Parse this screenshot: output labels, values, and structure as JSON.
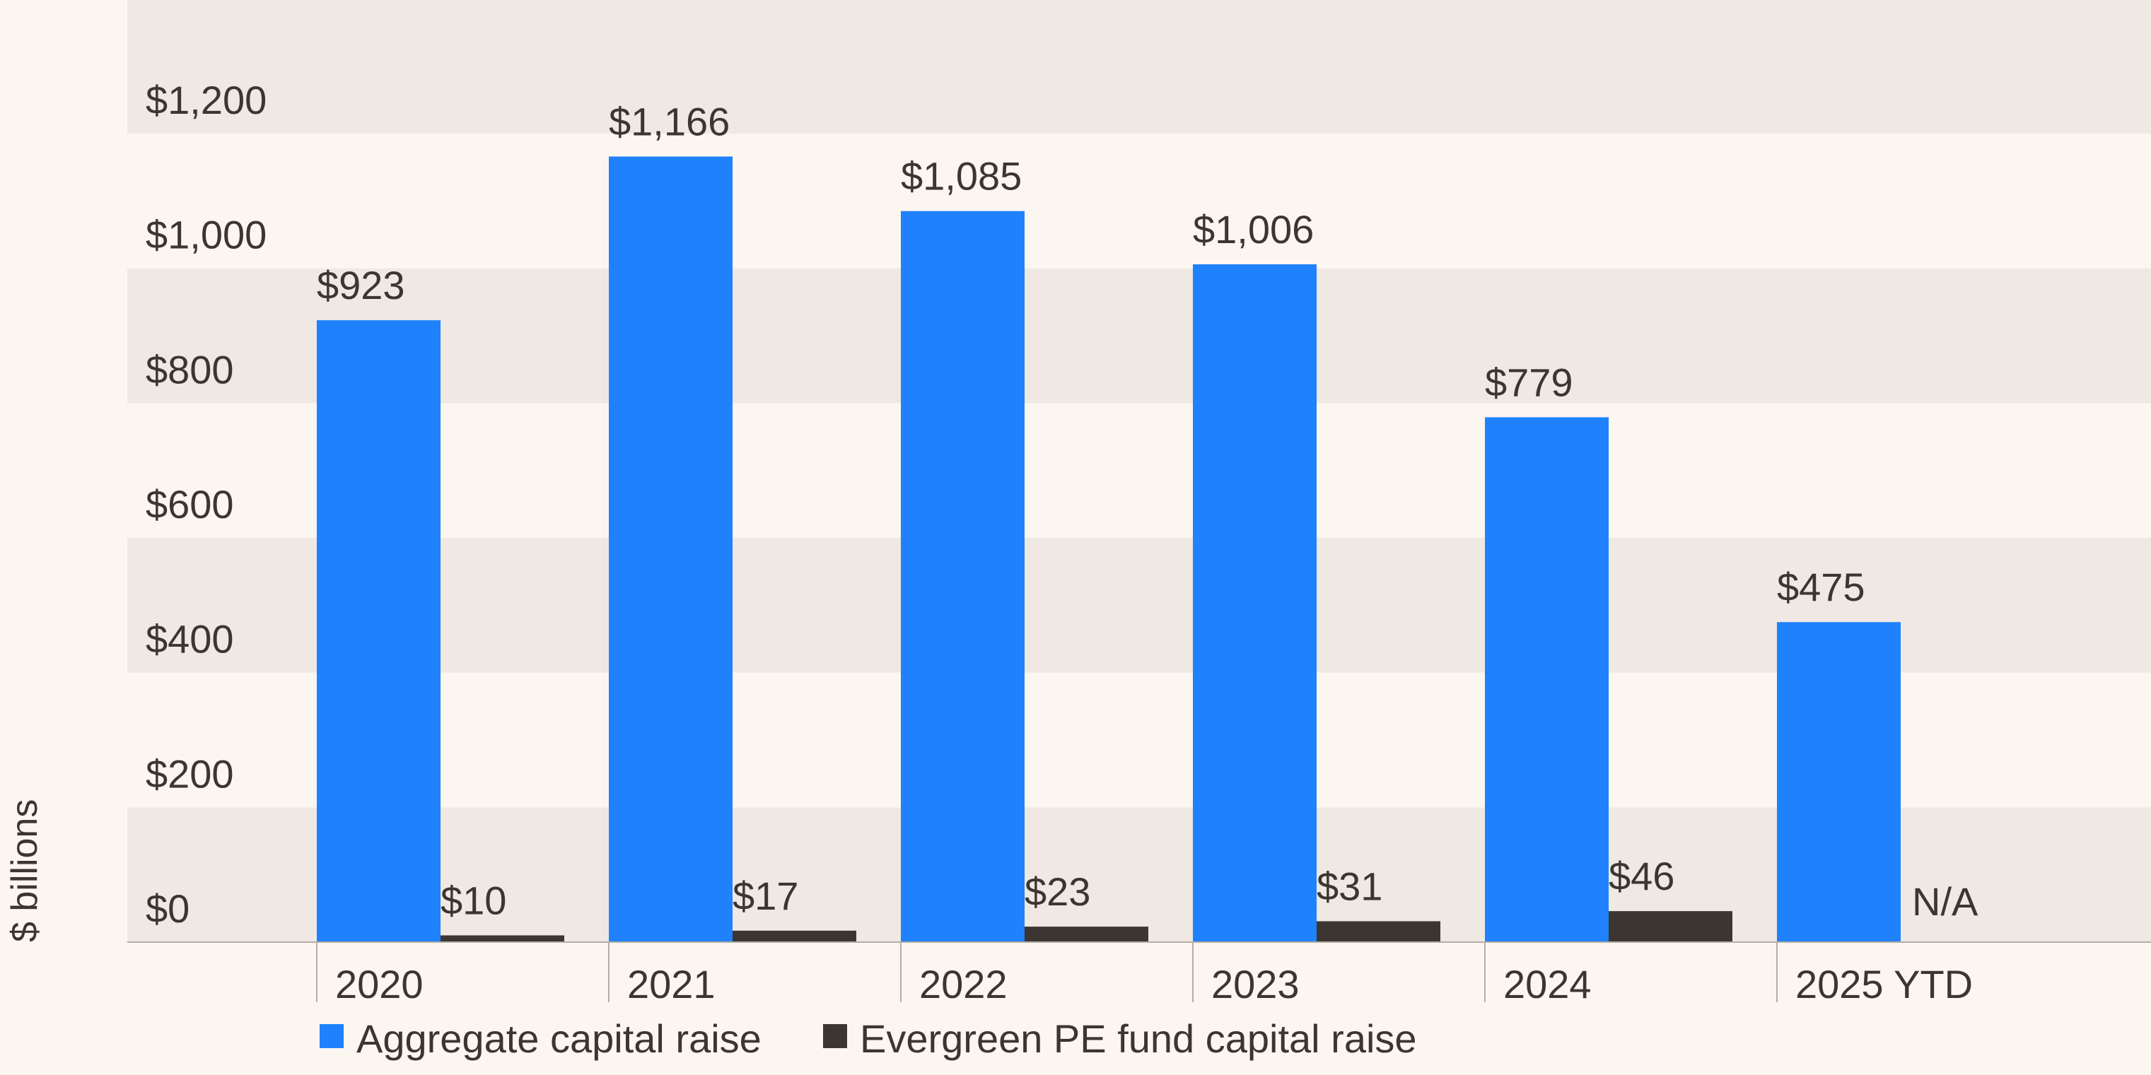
{
  "chart_data": {
    "type": "bar",
    "title": "",
    "xlabel": "",
    "ylabel": "$ billions",
    "ylim": [
      0,
      1200
    ],
    "yticks": [
      0,
      200,
      400,
      600,
      800,
      1000,
      1200
    ],
    "ytick_labels": [
      "$0",
      "$200",
      "$400",
      "$600",
      "$800",
      "$1,000",
      "$1,200"
    ],
    "grid": "alternating horizontal bands",
    "legend_position": "bottom-left",
    "categories": [
      "2020",
      "2021",
      "2022",
      "2023",
      "2024",
      "2025 YTD"
    ],
    "series": [
      {
        "name": "Aggregate capital raise",
        "color": "#1f82fc",
        "values": [
          923,
          1166,
          1085,
          1006,
          779,
          475
        ],
        "labels": [
          "$923",
          "$1,166",
          "$1,085",
          "$1,006",
          "$779",
          "$475"
        ]
      },
      {
        "name": "Evergreen PE fund capital raise",
        "color": "#3c3531",
        "values": [
          10,
          17,
          23,
          31,
          46,
          null
        ],
        "labels": [
          "$10",
          "$17",
          "$23",
          "$31",
          "$46",
          "N/A"
        ]
      }
    ],
    "band_colors": [
      "#efe8e3",
      "#fcf6f1"
    ]
  }
}
